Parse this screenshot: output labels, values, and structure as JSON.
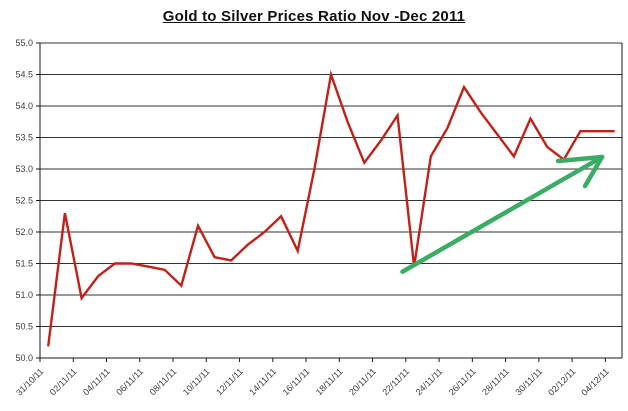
{
  "title": "Gold to Silver Prices Ratio Nov -Dec 2011",
  "colors": {
    "line": "#c2211a",
    "arrow": "#3bac63",
    "grid": "#333333",
    "axis": "#1a1a1a",
    "text": "#3d3d3d",
    "background": "#ffffff"
  },
  "chart_data": {
    "type": "line",
    "title": "Gold to Silver Prices Ratio Nov -Dec 2011",
    "xlabel": "",
    "ylabel": "",
    "ylim": [
      50.0,
      55.0
    ],
    "y_tick_step": 0.5,
    "y_tick_labels": [
      "55.0",
      "54.5",
      "54.0",
      "53.5",
      "53.0",
      "52.5",
      "52.0",
      "51.5",
      "51.0",
      "50.5",
      "50.0"
    ],
    "grid": "horizontal",
    "legend": "none",
    "x": [
      "31/10/11",
      "01/11/11",
      "02/11/11",
      "03/11/11",
      "04/11/11",
      "05/11/11",
      "06/11/11",
      "07/11/11",
      "08/11/11",
      "09/11/11",
      "10/11/11",
      "11/11/11",
      "12/11/11",
      "13/11/11",
      "14/11/11",
      "15/11/11",
      "16/11/11",
      "17/11/11",
      "18/11/11",
      "19/11/11",
      "20/11/11",
      "21/11/11",
      "22/11/11",
      "23/11/11",
      "24/11/11",
      "25/11/11",
      "26/11/11",
      "27/11/11",
      "28/11/11",
      "29/11/11",
      "30/11/11",
      "01/12/11",
      "02/12/11",
      "03/12/11",
      "04/12/11"
    ],
    "values": [
      50.2,
      52.3,
      50.95,
      51.3,
      51.5,
      51.5,
      51.45,
      51.4,
      51.15,
      52.1,
      51.6,
      51.55,
      51.8,
      52.0,
      52.25,
      51.7,
      53.0,
      54.5,
      53.75,
      53.1,
      53.45,
      53.85,
      51.45,
      53.2,
      53.65,
      54.3,
      53.9,
      53.55,
      53.2,
      53.8,
      53.35,
      53.15,
      53.6,
      53.6,
      53.6
    ],
    "x_tick_labels": [
      "31/10/11",
      "02/11/11",
      "04/11/11",
      "06/11/11",
      "08/11/11",
      "10/11/11",
      "12/11/11",
      "14/11/11",
      "16/11/11",
      "18/11/11",
      "20/11/11",
      "22/11/11",
      "24/11/11",
      "26/11/11",
      "28/11/11",
      "30/11/11",
      "02/12/11",
      "04/12/11"
    ],
    "x_tick_every": 2,
    "annotation": {
      "type": "arrow",
      "meaning": "upward trend projection",
      "from_x_index": 21.3,
      "from_value": 51.37,
      "to_x_index": 33.3,
      "to_value": 53.19
    }
  }
}
